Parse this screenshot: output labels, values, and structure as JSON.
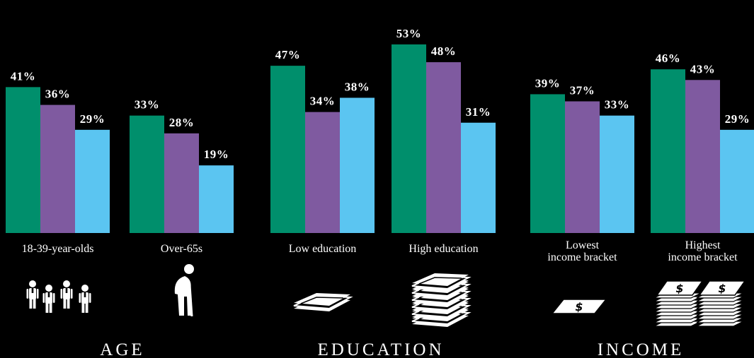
{
  "chart_data": {
    "type": "bar",
    "ylim": [
      0,
      55
    ],
    "colors": [
      "#008f6c",
      "#7f5aa0",
      "#5bc5f1"
    ],
    "sections": [
      {
        "name": "AGE",
        "icon": "people-icon"
      },
      {
        "name": "EDUCATION",
        "icon": "books-icon"
      },
      {
        "name": "INCOME",
        "icon": "money-icon"
      }
    ],
    "groups": [
      {
        "section": 0,
        "label": [
          "18-39-year-olds"
        ],
        "values": [
          41,
          36,
          29
        ],
        "value_labels": [
          "41%",
          "36%",
          "29%"
        ],
        "icon": "group-of-people-icon"
      },
      {
        "section": 0,
        "label": [
          "Over-65s"
        ],
        "values": [
          33,
          28,
          19
        ],
        "value_labels": [
          "33%",
          "28%",
          "19%"
        ],
        "icon": "elderly-person-icon"
      },
      {
        "section": 1,
        "label": [
          "Low education"
        ],
        "values": [
          47,
          34,
          38
        ],
        "value_labels": [
          "47%",
          "34%",
          "38%"
        ],
        "icon": "single-book-icon"
      },
      {
        "section": 1,
        "label": [
          "High education"
        ],
        "values": [
          53,
          48,
          31
        ],
        "value_labels": [
          "53%",
          "48%",
          "31%"
        ],
        "icon": "book-stack-icon"
      },
      {
        "section": 2,
        "label": [
          "Lowest",
          "income bracket"
        ],
        "values": [
          39,
          37,
          33
        ],
        "value_labels": [
          "39%",
          "37%",
          "33%"
        ],
        "icon": "single-banknote-icon"
      },
      {
        "section": 2,
        "label": [
          "Highest",
          "income bracket"
        ],
        "values": [
          46,
          43,
          29
        ],
        "value_labels": [
          "46%",
          "43%",
          "29%"
        ],
        "icon": "banknote-stacks-icon"
      }
    ]
  }
}
